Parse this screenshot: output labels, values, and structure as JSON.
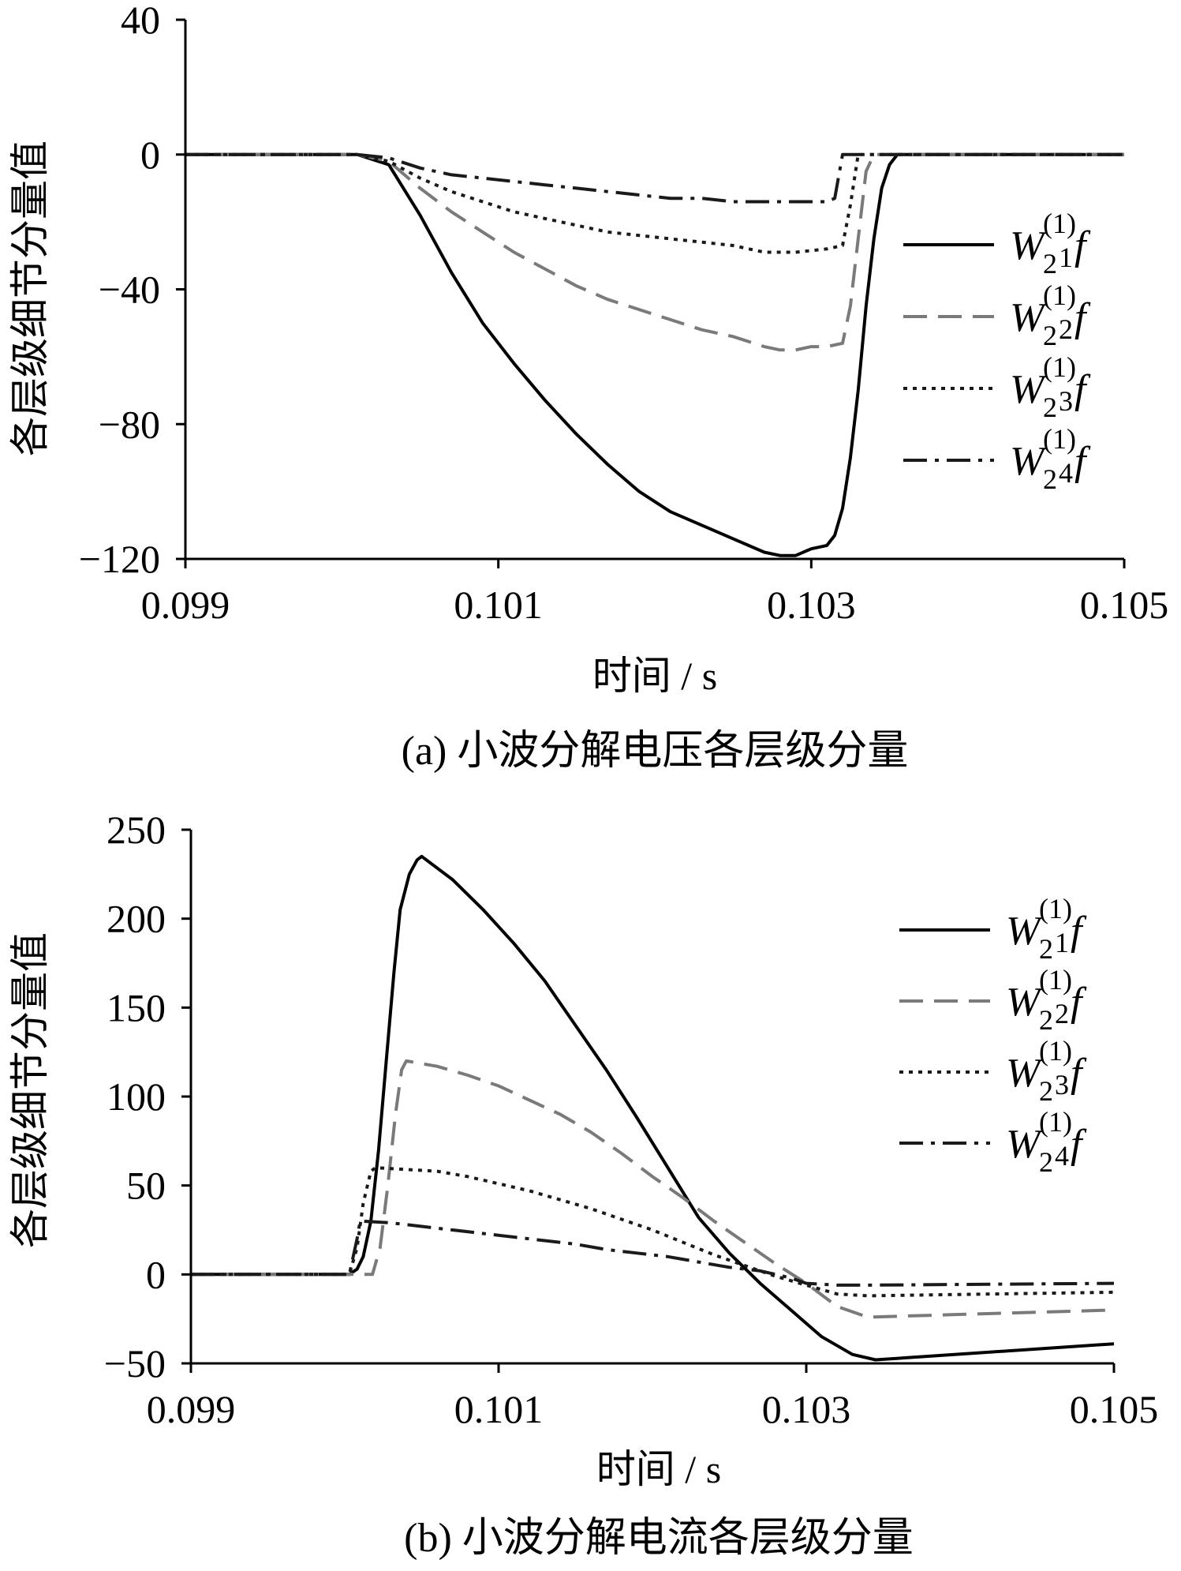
{
  "chart_data": [
    {
      "type": "line",
      "caption": "(a)  小波分解电压各层级分量",
      "xlabel": "时间 / s",
      "ylabel": "各层级细节分量值",
      "xlim": [
        0.099,
        0.105
      ],
      "ylim": [
        -120,
        40
      ],
      "xticks": [
        "0.099",
        "0.101",
        "0.103",
        "0.105"
      ],
      "yticks": [
        "40",
        "0",
        "−40",
        "−80",
        "−120"
      ],
      "grid": false,
      "legend_position": "right",
      "series": [
        {
          "legend": {
            "main": "W",
            "sub": "2",
            "sup": "(1)",
            "idx": "1",
            "tail": "f"
          },
          "color": "#000000",
          "dash": "solid",
          "x": [
            0.099,
            0.1001,
            0.1003,
            0.1005,
            0.1007,
            0.1009,
            0.1011,
            0.1013,
            0.1015,
            0.1017,
            0.1019,
            0.1021,
            0.1023,
            0.1025,
            0.1027,
            0.1028,
            0.1029,
            0.103,
            0.1031,
            0.10315,
            0.1032,
            0.10325,
            0.1033,
            0.10335,
            0.1034,
            0.10345,
            0.1035,
            0.10355,
            0.1036,
            0.105
          ],
          "y": [
            0,
            0,
            -3,
            -18,
            -35,
            -50,
            -62,
            -73,
            -83,
            -92,
            -100,
            -106,
            -110,
            -114,
            -118,
            -119,
            -119,
            -117,
            -116,
            -113,
            -105,
            -90,
            -70,
            -45,
            -25,
            -10,
            -3,
            0,
            0,
            0
          ]
        },
        {
          "legend": {
            "main": "W",
            "sub": "2",
            "sup": "(1)",
            "idx": "2",
            "tail": "f"
          },
          "color": "#7a7a7a",
          "dash": "dash",
          "x": [
            0.099,
            0.1001,
            0.1003,
            0.1005,
            0.1007,
            0.1009,
            0.1011,
            0.1013,
            0.1015,
            0.1017,
            0.1019,
            0.1021,
            0.1023,
            0.1025,
            0.1027,
            0.1028,
            0.1029,
            0.103,
            0.1031,
            0.1032,
            0.10325,
            0.1033,
            0.10335,
            0.1034,
            0.105
          ],
          "y": [
            0,
            0,
            -2,
            -10,
            -17,
            -23,
            -29,
            -34,
            -39,
            -43,
            -46,
            -49,
            -52,
            -54,
            -57,
            -58,
            -58,
            -57,
            -57,
            -56,
            -45,
            -25,
            -5,
            0,
            0
          ]
        },
        {
          "legend": {
            "main": "W",
            "sub": "2",
            "sup": "(1)",
            "idx": "3",
            "tail": "f"
          },
          "color": "#1a1a1a",
          "dash": "dot",
          "x": [
            0.099,
            0.1001,
            0.1003,
            0.1005,
            0.1007,
            0.1009,
            0.1011,
            0.1013,
            0.1015,
            0.1017,
            0.1019,
            0.1021,
            0.1023,
            0.1025,
            0.1027,
            0.1029,
            0.1031,
            0.1032,
            0.10325,
            0.1033,
            0.105
          ],
          "y": [
            0,
            0,
            -2,
            -7,
            -11,
            -14,
            -17,
            -19,
            -21,
            -23,
            -24,
            -25,
            -26,
            -27,
            -29,
            -29,
            -28,
            -27,
            -15,
            0,
            0
          ]
        },
        {
          "legend": {
            "main": "W",
            "sub": "2",
            "sup": "(1)",
            "idx": "4",
            "tail": "f"
          },
          "color": "#1a1a1a",
          "dash": "dashdot",
          "x": [
            0.099,
            0.1001,
            0.1003,
            0.1005,
            0.1007,
            0.1009,
            0.1011,
            0.1013,
            0.1015,
            0.1017,
            0.1019,
            0.1021,
            0.1023,
            0.1025,
            0.1027,
            0.1029,
            0.1031,
            0.10315,
            0.1032,
            0.105
          ],
          "y": [
            0,
            0,
            -1,
            -4,
            -6,
            -7,
            -8,
            -9,
            -10,
            -11,
            -12,
            -13,
            -13,
            -14,
            -14,
            -14,
            -14,
            -13,
            0,
            0
          ]
        }
      ]
    },
    {
      "type": "line",
      "caption": "(b)  小波分解电流各层级分量",
      "xlabel": "时间 / s",
      "ylabel": "各层级细节分量值",
      "xlim": [
        0.099,
        0.105
      ],
      "ylim": [
        -50,
        250
      ],
      "xticks": [
        "0.099",
        "0.101",
        "0.103",
        "0.105"
      ],
      "yticks": [
        "250",
        "200",
        "150",
        "100",
        "50",
        "0",
        "−50"
      ],
      "grid": false,
      "legend_position": "top-right",
      "series": [
        {
          "legend": {
            "main": "W",
            "sub": "2",
            "sup": "(1)",
            "idx": "1",
            "tail": "f"
          },
          "color": "#000000",
          "dash": "solid",
          "x": [
            0.099,
            0.10003,
            0.10008,
            0.10012,
            0.10017,
            0.10022,
            0.10027,
            0.10032,
            0.10036,
            0.10042,
            0.10047,
            0.1005,
            0.1007,
            0.1009,
            0.1011,
            0.1013,
            0.1015,
            0.1017,
            0.1019,
            0.1021,
            0.1023,
            0.1025,
            0.1027,
            0.1029,
            0.1031,
            0.1033,
            0.10345,
            0.105
          ],
          "y": [
            0,
            0,
            3,
            10,
            30,
            70,
            120,
            170,
            205,
            225,
            233,
            235,
            222,
            205,
            186,
            165,
            140,
            115,
            88,
            60,
            32,
            12,
            -5,
            -20,
            -35,
            -45,
            -48,
            -39
          ]
        },
        {
          "legend": {
            "main": "W",
            "sub": "2",
            "sup": "(1)",
            "idx": "2",
            "tail": "f"
          },
          "color": "#7a7a7a",
          "dash": "dash",
          "x": [
            0.099,
            0.10012,
            0.10018,
            0.10023,
            0.10028,
            0.10033,
            0.10037,
            0.1004,
            0.1006,
            0.1008,
            0.101,
            0.1012,
            0.1014,
            0.1016,
            0.1018,
            0.102,
            0.1022,
            0.1024,
            0.1026,
            0.1028,
            0.103,
            0.1032,
            0.1034,
            0.105
          ],
          "y": [
            0,
            0,
            0,
            15,
            50,
            90,
            115,
            120,
            117,
            112,
            106,
            98,
            90,
            80,
            68,
            55,
            43,
            30,
            18,
            6,
            -5,
            -18,
            -24,
            -20
          ]
        },
        {
          "legend": {
            "main": "W",
            "sub": "2",
            "sup": "(1)",
            "idx": "3",
            "tail": "f"
          },
          "color": "#1a1a1a",
          "dash": "dot",
          "x": [
            0.099,
            0.10003,
            0.10008,
            0.10012,
            0.10017,
            0.1002,
            0.1004,
            0.1006,
            0.1008,
            0.101,
            0.1012,
            0.1014,
            0.1016,
            0.1018,
            0.102,
            0.1022,
            0.1024,
            0.1026,
            0.1028,
            0.103,
            0.1032,
            0.1034,
            0.105
          ],
          "y": [
            0,
            0,
            15,
            40,
            58,
            60,
            59,
            58,
            55,
            51,
            47,
            42,
            37,
            31,
            25,
            18,
            11,
            5,
            -1,
            -6,
            -11,
            -12,
            -10
          ]
        },
        {
          "legend": {
            "main": "W",
            "sub": "2",
            "sup": "(1)",
            "idx": "4",
            "tail": "f"
          },
          "color": "#1a1a1a",
          "dash": "dashdot",
          "x": [
            0.099,
            0.10003,
            0.10008,
            0.1001,
            0.1003,
            0.1005,
            0.1007,
            0.1009,
            0.1011,
            0.1013,
            0.1015,
            0.1017,
            0.1019,
            0.1021,
            0.1023,
            0.1025,
            0.1027,
            0.1029,
            0.103,
            0.1032,
            0.1034,
            0.105
          ],
          "y": [
            0,
            0,
            20,
            30,
            29,
            27,
            25,
            23,
            21,
            19,
            17,
            14,
            12,
            10,
            7,
            4,
            2,
            -2,
            -5,
            -6,
            -6,
            -5
          ]
        }
      ]
    }
  ]
}
